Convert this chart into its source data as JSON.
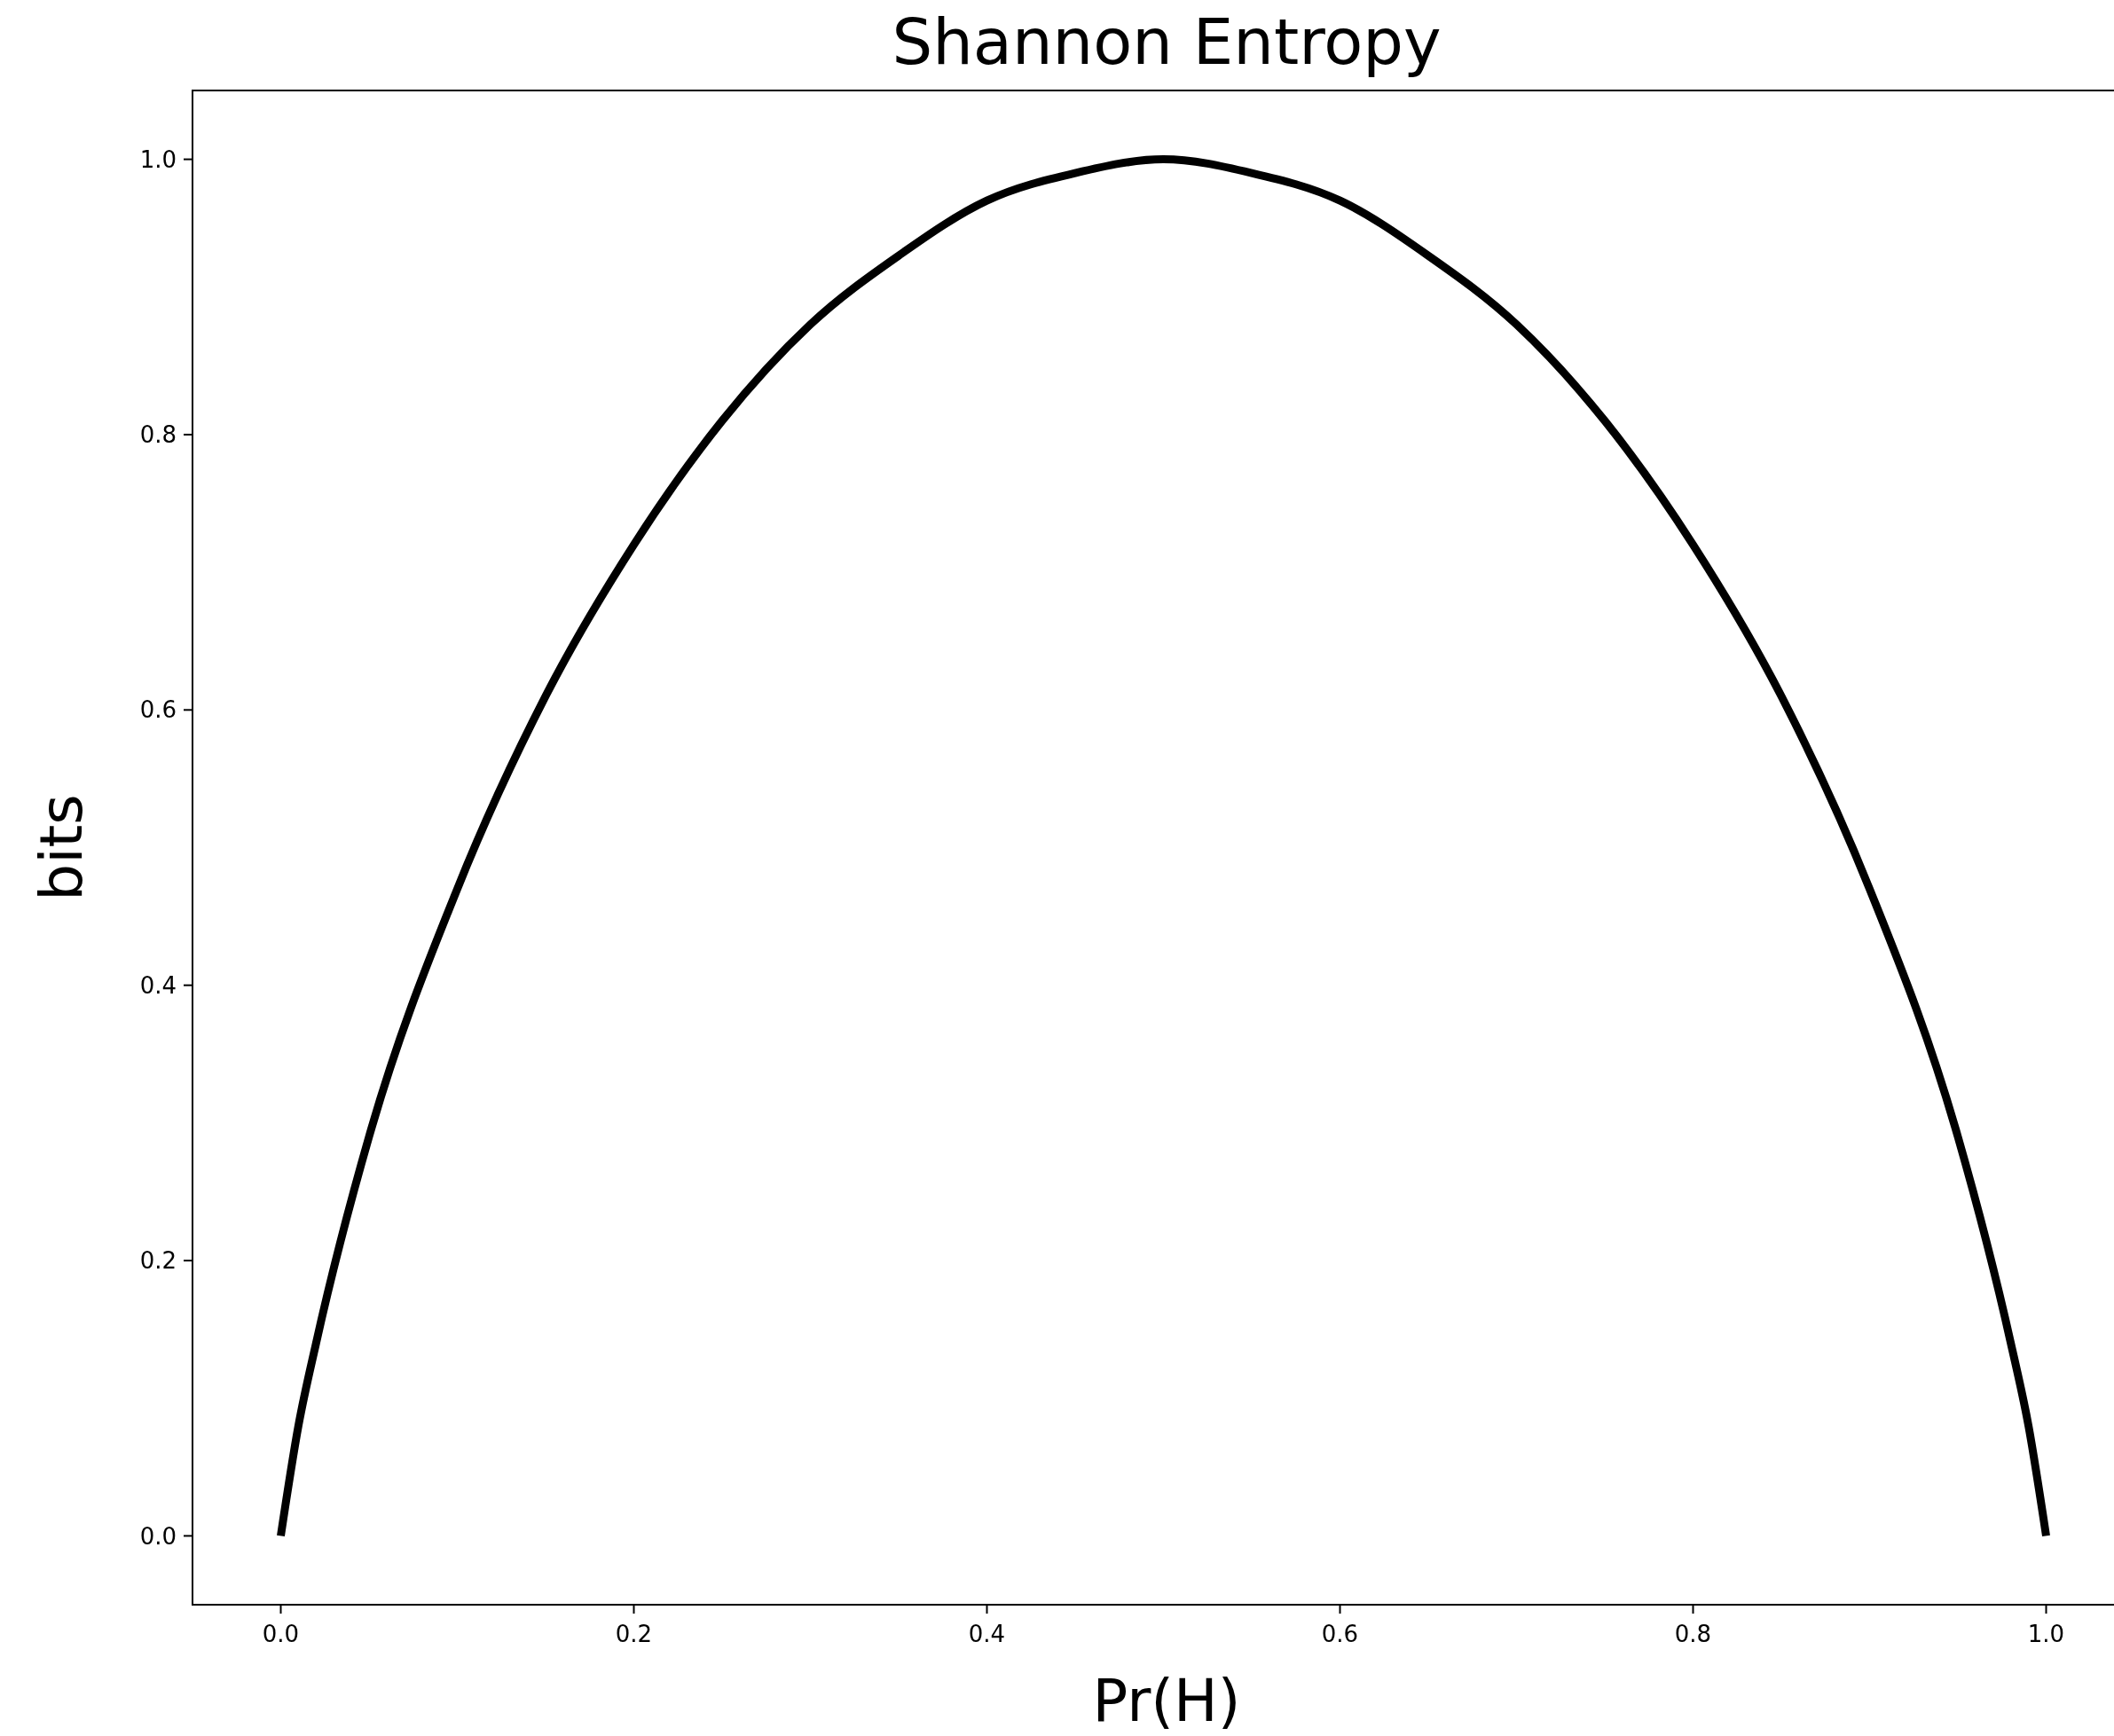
{
  "chart_data": {
    "type": "line",
    "title": "Shannon Entropy",
    "xlabel": "Pr(H)",
    "ylabel": "bits",
    "x": [
      0,
      0.01,
      0.02,
      0.05,
      0.1,
      0.15,
      0.2,
      0.25,
      0.3,
      0.35,
      0.4,
      0.45,
      0.5,
      0.55,
      0.6,
      0.65,
      0.7,
      0.75,
      0.8,
      0.85,
      0.9,
      0.95,
      0.98,
      0.99,
      1
    ],
    "series": [
      {
        "color": "#000000",
        "values": [
          0,
          0.08,
          0.14,
          0.29,
          0.47,
          0.61,
          0.72,
          0.81,
          0.88,
          0.93,
          0.97,
          0.99,
          1,
          0.99,
          0.97,
          0.93,
          0.88,
          0.81,
          0.72,
          0.61,
          0.47,
          0.29,
          0.14,
          0.08,
          0
        ]
      }
    ],
    "xlim": [
      -0.05,
      1.05
    ],
    "ylim": [
      -0.05,
      1.05
    ],
    "xticks": [
      {
        "value": 0,
        "label": "0.0"
      },
      0.2,
      0.4,
      0.6,
      0.8,
      {
        "value": 1,
        "label": "1.0"
      }
    ],
    "yticks": [
      {
        "value": 0,
        "label": "0.0"
      },
      0.2,
      0.4,
      0.6,
      0.8,
      {
        "value": 1,
        "label": "1.0"
      }
    ],
    "grid": false,
    "marker": "none",
    "line_style": "solid"
  }
}
